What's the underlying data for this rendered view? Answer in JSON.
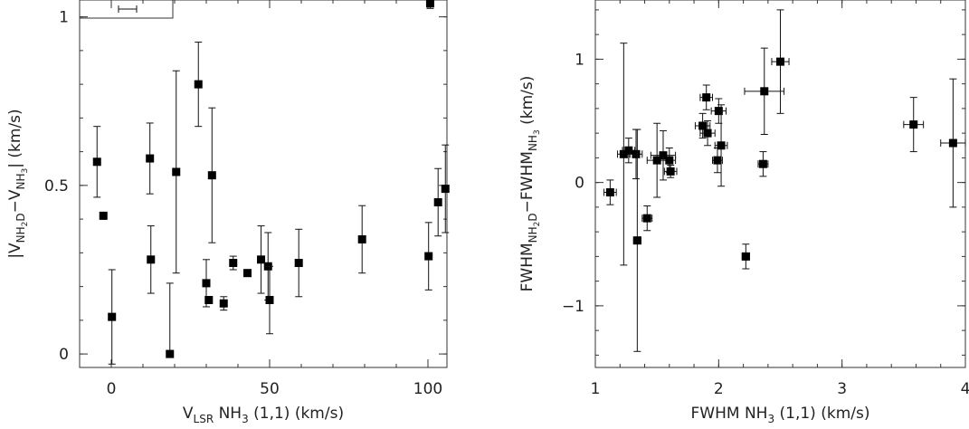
{
  "chart_data": [
    {
      "type": "scatter",
      "xlabel": "VLSR NH3 (1,1) (km/s)",
      "xlabel_parts": {
        "main": "V",
        "sub": "LSR",
        "rest1": " NH",
        "sub2": "3",
        "rest2": " (1,1) (km/s)"
      },
      "ylabel": "|VNH2D−VNH3| (km/s)",
      "xlim": [
        -10,
        106
      ],
      "ylim": [
        -0.04,
        1.05
      ],
      "xticks": [
        0,
        50,
        100
      ],
      "xtick_labels": [
        "0",
        "50",
        "100"
      ],
      "yticks": [
        0,
        0.5,
        1
      ],
      "ytick_labels": [
        "0",
        "0.5",
        "1"
      ],
      "legend_errorbar": true,
      "points": [
        {
          "x": -4.5,
          "y": 0.57,
          "yerr": [
            0.105,
            0.105
          ]
        },
        {
          "x": -2.5,
          "y": 0.41,
          "yerr": [
            0.0,
            0.0
          ]
        },
        {
          "x": 0.2,
          "y": 0.11,
          "yerr": [
            0.14,
            0.14
          ]
        },
        {
          "x": 12.2,
          "y": 0.58,
          "yerr": [
            0.105,
            0.105
          ]
        },
        {
          "x": 12.5,
          "y": 0.28,
          "yerr": [
            0.1,
            0.1
          ]
        },
        {
          "x": 18.5,
          "y": 0.0,
          "yerr": [
            0.0,
            0.21
          ]
        },
        {
          "x": 20.5,
          "y": 0.54,
          "yerr": [
            0.3,
            0.3
          ]
        },
        {
          "x": 27.5,
          "y": 0.8,
          "yerr": [
            0.125,
            0.125
          ]
        },
        {
          "x": 30.0,
          "y": 0.21,
          "yerr": [
            0.07,
            0.07
          ]
        },
        {
          "x": 30.8,
          "y": 0.16,
          "yerr": [
            0.0,
            0.0
          ]
        },
        {
          "x": 31.8,
          "y": 0.53,
          "yerr": [
            0.2,
            0.2
          ]
        },
        {
          "x": 35.5,
          "y": 0.15,
          "yerr": [
            0.02,
            0.02
          ]
        },
        {
          "x": 38.5,
          "y": 0.27,
          "yerr": [
            0.02,
            0.02
          ]
        },
        {
          "x": 43.0,
          "y": 0.24,
          "yerr": [
            0.01,
            0.01
          ]
        },
        {
          "x": 47.3,
          "y": 0.28,
          "yerr": [
            0.1,
            0.1
          ]
        },
        {
          "x": 49.5,
          "y": 0.26,
          "yerr": [
            0.1,
            0.1
          ]
        },
        {
          "x": 50.0,
          "y": 0.16,
          "yerr": [
            0.1,
            0.1
          ]
        },
        {
          "x": 59.2,
          "y": 0.27,
          "yerr": [
            0.1,
            0.1
          ]
        },
        {
          "x": 79.2,
          "y": 0.34,
          "yerr": [
            0.1,
            0.1
          ]
        },
        {
          "x": 100.2,
          "y": 0.29,
          "yerr": [
            0.1,
            0.1
          ]
        },
        {
          "x": 100.7,
          "y": 1.04,
          "yerr": [
            0.015,
            0.015
          ]
        },
        {
          "x": 103.2,
          "y": 0.45,
          "yerr": [
            0.1,
            0.1
          ]
        },
        {
          "x": 105.5,
          "y": 0.49,
          "yerr": [
            0.13,
            0.13
          ]
        }
      ]
    },
    {
      "type": "scatter",
      "xlabel": "FWHM NH3 (1,1) (km/s)",
      "xlabel_parts": {
        "main": "FWHM NH",
        "sub": "3",
        "rest1": " (1,1) (km/s)"
      },
      "ylabel": "FWHMNH2D−FWHMNH3 (km/s)",
      "xlim": [
        1.0,
        4.0
      ],
      "ylim": [
        -1.5,
        1.48
      ],
      "xticks": [
        1,
        2,
        3,
        4
      ],
      "xtick_labels": [
        "1",
        "2",
        "3",
        "4"
      ],
      "yticks": [
        -1,
        0,
        1
      ],
      "ytick_labels": [
        "−1",
        "0",
        "1"
      ],
      "points": [
        {
          "x": 1.12,
          "y": -0.08,
          "xerr": 0.05,
          "yerr": [
            0.1,
            0.1
          ]
        },
        {
          "x": 1.23,
          "y": 0.23,
          "xerr": 0.05,
          "yerr": [
            0.9,
            0.9
          ]
        },
        {
          "x": 1.27,
          "y": 0.26,
          "xerr": 0.05,
          "yerr": [
            0.1,
            0.1
          ]
        },
        {
          "x": 1.33,
          "y": 0.23,
          "xerr": 0.05,
          "yerr": [
            0.2,
            0.2
          ]
        },
        {
          "x": 1.34,
          "y": -0.47,
          "xerr": 0.03,
          "yerr": [
            0.9,
            0.9
          ]
        },
        {
          "x": 1.42,
          "y": -0.29,
          "xerr": 0.04,
          "yerr": [
            0.1,
            0.1
          ]
        },
        {
          "x": 1.5,
          "y": 0.18,
          "xerr": 0.08,
          "yerr": [
            0.3,
            0.3
          ]
        },
        {
          "x": 1.55,
          "y": 0.22,
          "xerr": 0.1,
          "yerr": [
            0.2,
            0.2
          ]
        },
        {
          "x": 1.6,
          "y": 0.18,
          "xerr": 0.05,
          "yerr": [
            0.1,
            0.1
          ]
        },
        {
          "x": 1.61,
          "y": 0.09,
          "xerr": 0.05,
          "yerr": [
            0.05,
            0.05
          ]
        },
        {
          "x": 1.87,
          "y": 0.46,
          "xerr": 0.06,
          "yerr": [
            0.1,
            0.1
          ]
        },
        {
          "x": 1.9,
          "y": 0.69,
          "xerr": 0.05,
          "yerr": [
            0.1,
            0.1
          ]
        },
        {
          "x": 1.91,
          "y": 0.4,
          "xerr": 0.06,
          "yerr": [
            0.1,
            0.1
          ]
        },
        {
          "x": 1.99,
          "y": 0.18,
          "xerr": 0.04,
          "yerr": [
            0.1,
            0.1
          ]
        },
        {
          "x": 2.0,
          "y": 0.58,
          "xerr": 0.06,
          "yerr": [
            0.1,
            0.1
          ]
        },
        {
          "x": 2.02,
          "y": 0.3,
          "xerr": 0.05,
          "yerr": [
            0.33,
            0.33
          ]
        },
        {
          "x": 2.22,
          "y": -0.6,
          "xerr": 0.03,
          "yerr": [
            0.1,
            0.1
          ]
        },
        {
          "x": 2.36,
          "y": 0.15,
          "xerr": 0.04,
          "yerr": [
            0.1,
            0.1
          ]
        },
        {
          "x": 2.37,
          "y": 0.74,
          "xerr": 0.16,
          "yerr": [
            0.35,
            0.35
          ]
        },
        {
          "x": 2.5,
          "y": 0.98,
          "xerr": 0.07,
          "yerr": [
            0.42,
            0.42
          ]
        },
        {
          "x": 3.58,
          "y": 0.47,
          "xerr": 0.08,
          "yerr": [
            0.22,
            0.22
          ]
        },
        {
          "x": 3.9,
          "y": 0.32,
          "xerr": 0.1,
          "yerr": [
            0.52,
            0.52
          ]
        }
      ]
    }
  ]
}
